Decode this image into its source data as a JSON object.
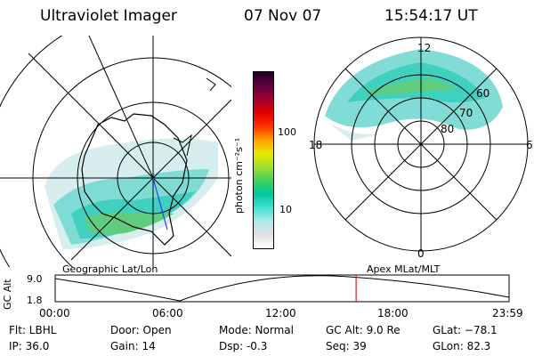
{
  "header": {
    "instrument": "Ultraviolet Imager",
    "date": "07 Nov 07",
    "time": "15:54:17 UT"
  },
  "geo_panel": {
    "label": "Geographic Lat/Lon"
  },
  "apex_panel": {
    "label": "Apex MLat/MLT",
    "mlt_labels": [
      "12",
      "18",
      "6",
      "0"
    ],
    "mlat_labels": [
      "60",
      "70",
      "80"
    ]
  },
  "colorbar": {
    "units": "photon cm⁻²s⁻¹",
    "ticks": [
      "100",
      "10"
    ],
    "colors": [
      "#ffffff",
      "#e0e0e0",
      "#b0e8e8",
      "#40e0d0",
      "#00c8a0",
      "#40d060",
      "#a0e030",
      "#e8e800",
      "#ffa000",
      "#ff3000",
      "#e00000",
      "#a00030",
      "#600040",
      "#200020"
    ]
  },
  "timeline": {
    "ylabel": "GC Alt",
    "ymax": "9.0",
    "ymin": "1.8",
    "xticks": [
      "00:00",
      "06:00",
      "12:00",
      "18:00",
      "23:59"
    ],
    "current_time_fraction": 0.663,
    "marker_color": "#d02020"
  },
  "status": {
    "flt": "Flt: LBHL",
    "ip": "IP: 36.0",
    "door": "Door: Open",
    "gain": "Gain: 14",
    "mode": "Mode: Normal",
    "dsp": "Dsp:    -0.3",
    "gcalt": "GC Alt: 9.0 Re",
    "seq": "Seq: 39",
    "glat": "GLat: −78.1",
    "glon": "GLon:  82.3"
  }
}
